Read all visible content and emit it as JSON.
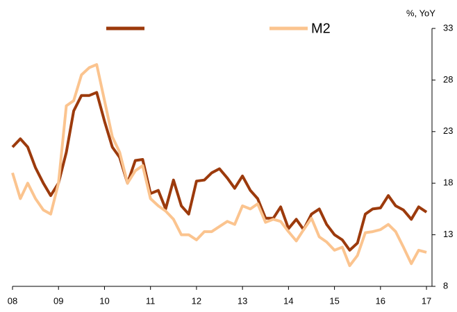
{
  "chart_data": {
    "type": "line",
    "y_axis_label": "%, YoY",
    "x": [
      2008,
      2008.17,
      2008.33,
      2008.5,
      2008.67,
      2008.83,
      2009,
      2009.17,
      2009.33,
      2009.5,
      2009.67,
      2009.83,
      2010,
      2010.17,
      2010.33,
      2010.5,
      2010.67,
      2010.83,
      2011,
      2011.17,
      2011.33,
      2011.5,
      2011.67,
      2011.83,
      2012,
      2012.17,
      2012.33,
      2012.5,
      2012.67,
      2012.83,
      2013,
      2013.17,
      2013.33,
      2013.5,
      2013.67,
      2013.83,
      2014,
      2014.17,
      2014.33,
      2014.5,
      2014.67,
      2014.83,
      2015,
      2015.17,
      2015.33,
      2015.5,
      2015.67,
      2015.83,
      2016,
      2016.17,
      2016.33,
      2016.5,
      2016.67,
      2016.83,
      2017
    ],
    "series": [
      {
        "color": "#9c3a0c",
        "values": [
          21.5,
          22.3,
          21.5,
          19.5,
          18,
          16.8,
          18,
          21,
          25,
          26.5,
          26.5,
          26.8,
          24,
          21.5,
          20.5,
          18,
          20.2,
          20.3,
          17,
          17.3,
          15.5,
          18.3,
          15.8,
          15,
          18.2,
          18.3,
          19,
          19.4,
          18.5,
          17.5,
          18.7,
          17.3,
          16.5,
          14.6,
          14.6,
          15.7,
          13.6,
          14.5,
          13.5,
          15,
          15.5,
          14,
          13,
          12.5,
          11.5,
          12.2,
          15,
          15.5,
          15.6,
          16.8,
          15.8,
          15.4,
          14.5,
          15.7,
          15.2
        ]
      },
      {
        "name": "M2",
        "color": "#fbc48f",
        "values": [
          19,
          16.5,
          18,
          16.5,
          15.4,
          15,
          18,
          25.5,
          26,
          28.5,
          29.2,
          29.5,
          26,
          22.5,
          21,
          18,
          19.2,
          19.7,
          16.5,
          15.8,
          15.3,
          14.5,
          13,
          13,
          12.5,
          13.3,
          13.3,
          13.8,
          14.3,
          14,
          15.8,
          15.5,
          16,
          14.2,
          14.5,
          14.3,
          13.3,
          12.4,
          13.5,
          14.6,
          12.8,
          12.3,
          11.5,
          11.8,
          10,
          11,
          13.2,
          13.3,
          13.5,
          14,
          13.3,
          11.8,
          10.2,
          11.5,
          11.3
        ]
      }
    ],
    "xlim": [
      2008,
      2017.12
    ],
    "xticks": [
      {
        "value": 2008,
        "label": "08"
      },
      {
        "value": 2009,
        "label": "09"
      },
      {
        "value": 2010,
        "label": "10"
      },
      {
        "value": 2011,
        "label": "11"
      },
      {
        "value": 2012,
        "label": "12"
      },
      {
        "value": 2013,
        "label": "13"
      },
      {
        "value": 2014,
        "label": "14"
      },
      {
        "value": 2015,
        "label": "15"
      },
      {
        "value": 2016,
        "label": "16"
      },
      {
        "value": 2017,
        "label": "17"
      }
    ],
    "ylim": [
      8,
      33
    ],
    "yticks": [
      8,
      13,
      18,
      23,
      28,
      33
    ],
    "y_axis_side": "right"
  }
}
